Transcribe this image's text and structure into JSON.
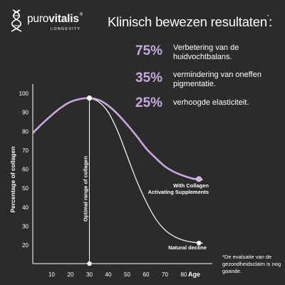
{
  "brand": {
    "name_light": "puro",
    "name_bold": "vitalis",
    "registered": "®",
    "tagline": "LONGEVITY"
  },
  "headline": {
    "text": "Klinisch bewezen resultaten",
    "asterisk": "*"
  },
  "stats": [
    {
      "value": "75%",
      "text": "Verbetering van de huidvochtbalans."
    },
    {
      "value": "35%",
      "text": "vermindering van oneffen pigmentatie."
    },
    {
      "value": "25%",
      "text": "verhoogde elasticiteit."
    }
  ],
  "footnote": "*De evaluatie van de gezondheidsclaim is nog gaande.",
  "colors": {
    "accent": "#c9a8e0",
    "background": "#2b2b2b",
    "line": "#ffffff"
  },
  "chart_data": {
    "type": "line",
    "xlabel": "Age",
    "ylabel": "Percentage of collagen",
    "xlim": [
      0,
      90
    ],
    "ylim": [
      15,
      100
    ],
    "x_ticks": [
      10,
      20,
      30,
      40,
      50,
      60,
      70,
      80
    ],
    "y_ticks": [
      20,
      30,
      40,
      50,
      60,
      70,
      80,
      90,
      100
    ],
    "series": [
      {
        "name": "With Collagen Activating Supplements",
        "color": "#c9a8e0",
        "x": [
          0,
          5,
          10,
          15,
          20,
          25,
          30,
          35,
          40,
          45,
          50,
          55,
          60,
          65,
          70,
          75,
          80,
          85,
          90
        ],
        "y": [
          79,
          84,
          88.5,
          92.5,
          95.5,
          97,
          97.5,
          96.5,
          93.5,
          89,
          83.5,
          77.5,
          71,
          66,
          61.5,
          58.5,
          56.5,
          55,
          54.5
        ]
      },
      {
        "name": "Natural decline",
        "color": "#ffffff",
        "x": [
          30,
          35,
          40,
          45,
          50,
          55,
          60,
          65,
          70,
          75,
          80,
          85,
          90
        ],
        "y": [
          97.5,
          95.5,
          90,
          80,
          67,
          54,
          43,
          34,
          28,
          24.5,
          22.5,
          21.5,
          21
        ]
      }
    ],
    "annotations": [
      {
        "text": "Optimal range of collagen",
        "x": 30
      }
    ]
  }
}
